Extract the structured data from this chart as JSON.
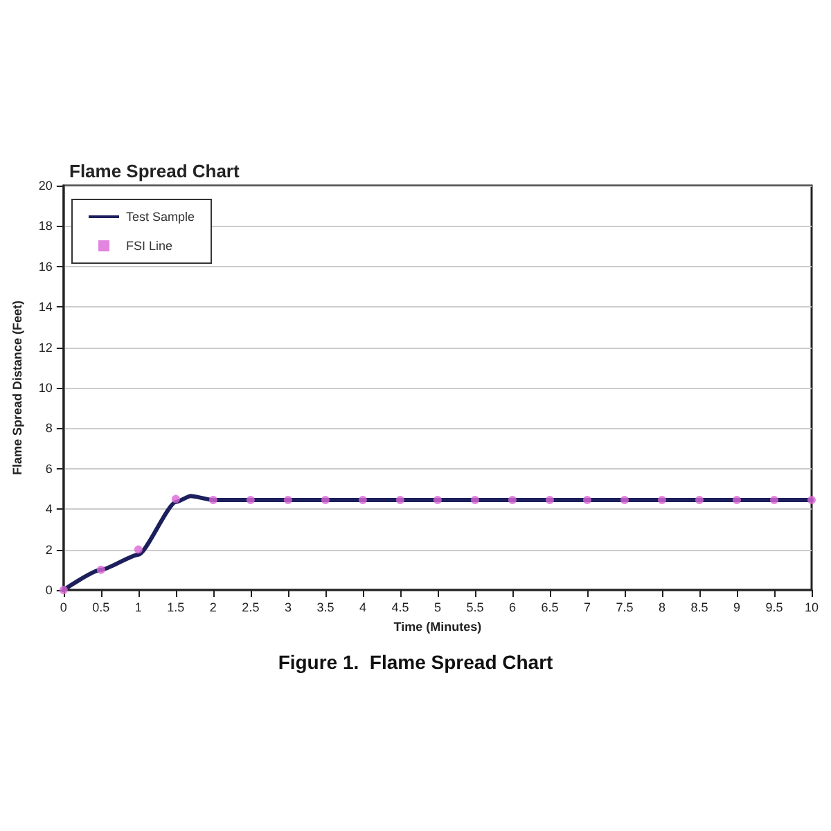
{
  "chart_data": {
    "type": "line",
    "title": "Flame Spread Chart",
    "xlabel": "Time (Minutes)",
    "ylabel": "Flame Spread Distance (Feet)",
    "annotations": [
      "Figure 1.  Flame Spread Chart"
    ],
    "series": [
      {
        "name": "Test Sample",
        "color": "#1c1f5c",
        "line_style": "solid",
        "x": [
          0,
          0.5,
          1,
          1.5,
          1.7,
          2,
          2.5,
          3,
          3.5,
          4,
          4.5,
          5,
          5.5,
          6,
          6.5,
          7,
          7.5,
          8,
          8.5,
          9,
          9.5,
          10
        ],
        "values": [
          0,
          1,
          1.75,
          4.35,
          4.65,
          4.45,
          4.45,
          4.45,
          4.45,
          4.45,
          4.45,
          4.45,
          4.45,
          4.45,
          4.45,
          4.45,
          4.45,
          4.45,
          4.45,
          4.45,
          4.45,
          4.45
        ]
      },
      {
        "name": "FSI Line",
        "type": "scatter",
        "color": "#d966d6",
        "marker": "circle",
        "x": [
          0,
          0.5,
          1,
          1.5,
          2,
          2.5,
          3,
          3.5,
          4,
          4.5,
          5,
          5.5,
          6,
          6.5,
          7,
          7.5,
          8,
          8.5,
          9,
          9.5,
          10
        ],
        "values": [
          0,
          1,
          2,
          4.5,
          4.45,
          4.45,
          4.45,
          4.45,
          4.45,
          4.45,
          4.45,
          4.45,
          4.45,
          4.45,
          4.45,
          4.45,
          4.45,
          4.45,
          4.45,
          4.45,
          4.45
        ]
      }
    ],
    "xlim": [
      0,
      10
    ],
    "xticks": [
      0,
      0.5,
      1,
      1.5,
      2,
      2.5,
      3,
      3.5,
      4,
      4.5,
      5,
      5.5,
      6,
      6.5,
      7,
      7.5,
      8,
      8.5,
      9,
      9.5,
      10
    ],
    "ylim": [
      0,
      20
    ],
    "yticks": [
      0,
      2,
      4,
      6,
      8,
      10,
      12,
      14,
      16,
      18,
      20
    ],
    "grid": "y",
    "legend": "top left"
  }
}
